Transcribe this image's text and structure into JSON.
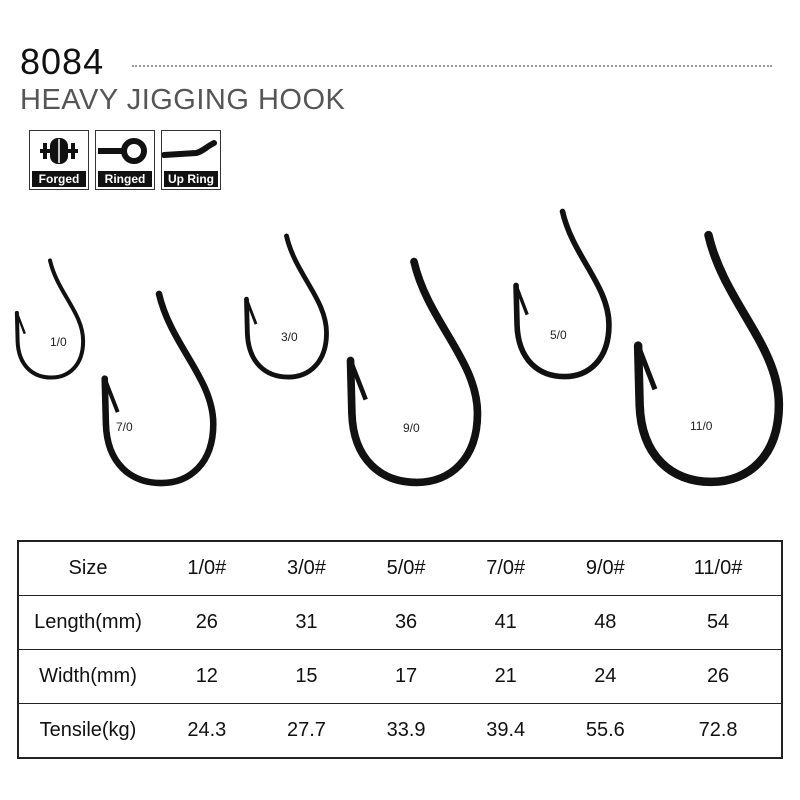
{
  "header": {
    "model": "8084",
    "title": "HEAVY JIGGING HOOK"
  },
  "badges": [
    {
      "label": "Forged",
      "icon": "forged-icon"
    },
    {
      "label": "Ringed",
      "icon": "ringed-eye-icon"
    },
    {
      "label": "Up Ring",
      "icon": "up-ring-icon"
    }
  ],
  "hooks": [
    {
      "size": "1/0"
    },
    {
      "size": "7/0"
    },
    {
      "size": "3/0"
    },
    {
      "size": "9/0"
    },
    {
      "size": "5/0"
    },
    {
      "size": "11/0"
    }
  ],
  "table": {
    "rows": [
      {
        "label": "Size",
        "values": [
          "1/0#",
          "3/0#",
          "5/0#",
          "7/0#",
          "9/0#",
          "11/0#"
        ]
      },
      {
        "label": "Length(mm)",
        "values": [
          "26",
          "31",
          "36",
          "41",
          "48",
          "54"
        ]
      },
      {
        "label": "Width(mm)",
        "values": [
          "12",
          "15",
          "17",
          "21",
          "24",
          "26"
        ]
      },
      {
        "label": "Tensile(kg)",
        "values": [
          "24.3",
          "27.7",
          "33.9",
          "39.4",
          "55.6",
          "72.8"
        ]
      }
    ]
  }
}
